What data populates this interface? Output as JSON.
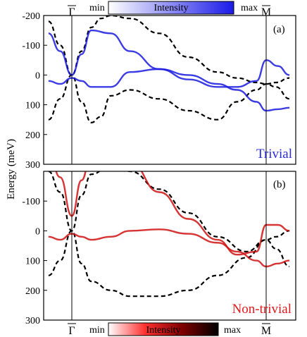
{
  "chart_data": [
    {
      "type": "line",
      "panel_label": "(a)",
      "phase_label": "Trivial",
      "phase_color": "#2b2bd6",
      "band_color": "#1a1ae0",
      "colorbar": {
        "min_label": "min",
        "title": "Intensity",
        "max_label": "max",
        "title_color": "#e8e020",
        "gradient": [
          "#ffffff",
          "#1a1ae8"
        ]
      },
      "ylabel": "Energy (meV)",
      "ylim": [
        -200,
        300
      ],
      "yticks": [
        "-200",
        "-100",
        "0",
        "100",
        "200",
        "300"
      ],
      "x_points": [
        {
          "label": "Γ",
          "overline": true,
          "position": "Gamma"
        },
        {
          "label": "M",
          "overline": true,
          "position": "M"
        }
      ],
      "grid": false,
      "legend": "none",
      "series": [
        {
          "style": "dashed",
          "color": "#000000",
          "x": [
            -0.12,
            -0.06,
            0,
            0.05,
            0.1,
            0.15,
            0.2,
            0.3,
            0.45,
            0.6,
            0.75,
            0.85,
            0.95,
            1.0,
            1.05,
            1.12
          ],
          "y": [
            -180,
            -100,
            0,
            -80,
            -160,
            -190,
            -200,
            -190,
            -140,
            -60,
            -10,
            10,
            25,
            30,
            25,
            10
          ]
        },
        {
          "style": "dashed",
          "color": "#000000",
          "x": [
            -0.12,
            -0.06,
            0,
            0.05,
            0.1,
            0.15,
            0.2,
            0.3,
            0.45,
            0.6,
            0.75,
            0.85,
            0.95,
            1.0,
            1.05,
            1.12
          ],
          "y": [
            150,
            80,
            0,
            90,
            160,
            140,
            70,
            50,
            80,
            120,
            150,
            90,
            50,
            30,
            40,
            80
          ]
        },
        {
          "style": "solid",
          "color": "#1a1ae0",
          "x": [
            -0.12,
            -0.06,
            0,
            0.05,
            0.1,
            0.2,
            0.3,
            0.45,
            0.6,
            0.75,
            0.85,
            0.95,
            1.0,
            1.06,
            1.12
          ],
          "y": [
            -140,
            -80,
            0,
            -70,
            -150,
            -140,
            -80,
            -20,
            15,
            40,
            40,
            20,
            -50,
            -30,
            0
          ]
        },
        {
          "style": "solid",
          "color": "#1a1ae0",
          "x": [
            -0.12,
            -0.06,
            0,
            0.05,
            0.1,
            0.2,
            0.3,
            0.45,
            0.6,
            0.75,
            0.85,
            0.95,
            1.0,
            1.06,
            1.12
          ],
          "y": [
            20,
            30,
            10,
            20,
            40,
            40,
            -10,
            -20,
            0,
            30,
            50,
            90,
            120,
            115,
            110
          ]
        }
      ]
    },
    {
      "type": "line",
      "panel_label": "(b)",
      "phase_label": "Non-trivial",
      "phase_color": "#e0181c",
      "band_color": "#d01010",
      "colorbar": {
        "min_label": "min",
        "title": "Intensity",
        "max_label": "max",
        "title_color": "#ffffff",
        "gradient": [
          "#ffffff",
          "#ff3030",
          "#800000",
          "#000000"
        ]
      },
      "ylabel": "Energy (meV)",
      "ylim": [
        -200,
        300
      ],
      "yticks": [
        "-100",
        "0",
        "100",
        "200",
        "300"
      ],
      "x_points": [
        {
          "label": "Γ",
          "overline": true,
          "position": "Gamma"
        },
        {
          "label": "M",
          "overline": true,
          "position": "M"
        }
      ],
      "grid": false,
      "legend": "none",
      "series": [
        {
          "style": "dashed",
          "color": "#000000",
          "x": [
            -0.12,
            -0.06,
            0,
            0.05,
            0.1,
            0.2,
            0.3,
            0.45,
            0.6,
            0.75,
            0.9,
            1.0,
            1.05,
            1.12
          ],
          "y": [
            -200,
            -130,
            0,
            -120,
            -190,
            -220,
            -200,
            -140,
            -60,
            20,
            70,
            30,
            60,
            120
          ]
        },
        {
          "style": "dashed",
          "color": "#000000",
          "x": [
            -0.12,
            -0.06,
            0,
            0.05,
            0.1,
            0.2,
            0.3,
            0.45,
            0.6,
            0.75,
            0.9,
            1.0,
            1.05,
            1.12
          ],
          "y": [
            150,
            100,
            0,
            110,
            170,
            200,
            220,
            220,
            200,
            150,
            90,
            30,
            20,
            0
          ]
        },
        {
          "style": "solid",
          "color": "#d01010",
          "x": [
            -0.12,
            -0.06,
            0,
            0.05,
            0.1,
            0.2,
            0.3,
            0.45,
            0.6,
            0.75,
            0.85,
            0.95,
            1.0,
            1.06,
            1.12
          ],
          "y": [
            -270,
            -180,
            -50,
            -170,
            -260,
            -290,
            -230,
            -130,
            -40,
            30,
            80,
            70,
            -20,
            -20,
            0
          ]
        },
        {
          "style": "solid",
          "color": "#d01010",
          "x": [
            -0.12,
            -0.06,
            0,
            0.05,
            0.1,
            0.2,
            0.3,
            0.45,
            0.6,
            0.75,
            0.85,
            0.95,
            1.0,
            1.06,
            1.12
          ],
          "y": [
            20,
            30,
            10,
            20,
            30,
            20,
            0,
            -5,
            10,
            40,
            70,
            100,
            120,
            110,
            100
          ]
        }
      ]
    }
  ]
}
